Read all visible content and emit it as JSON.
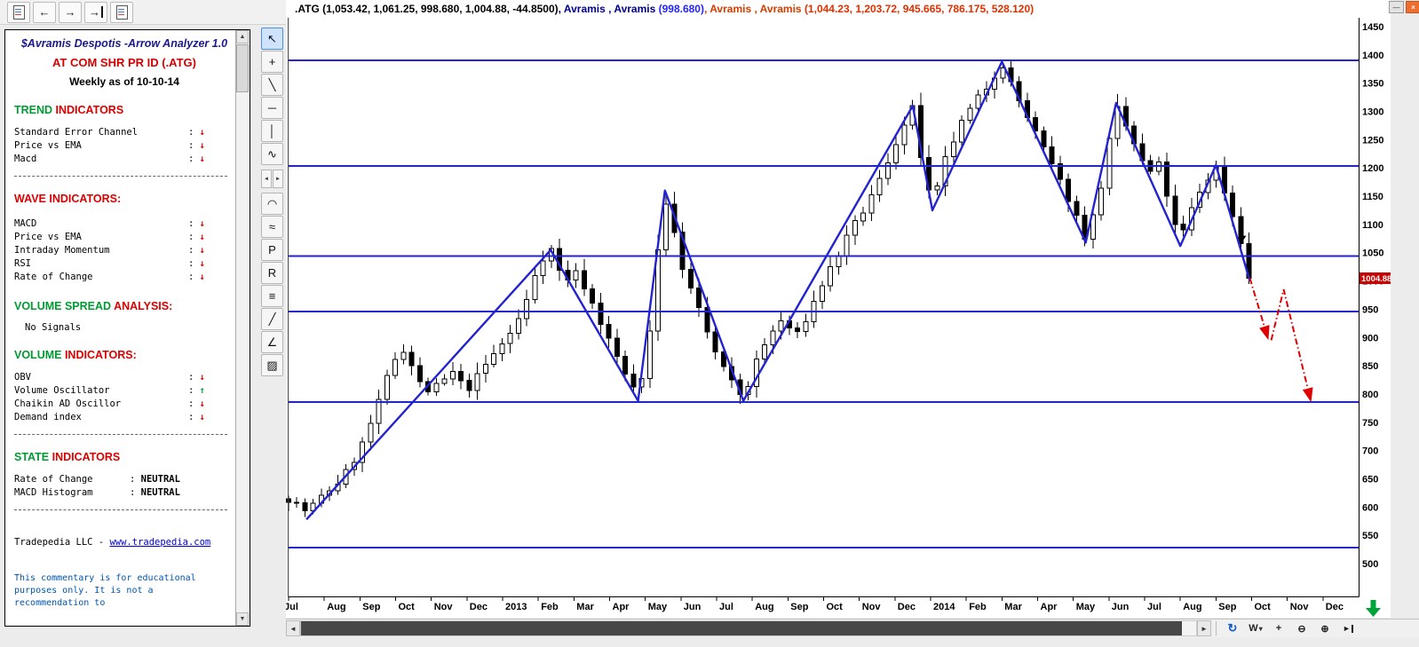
{
  "accent": {
    "chart_blue": "#2323cf",
    "signal_red": "#e00000",
    "signal_green": "#00a33a",
    "tag_red": "#c80000",
    "heading_green": "#009b33",
    "heading_red": "#dd0000"
  },
  "window": {
    "minimize_glyph": "—",
    "close_glyph": "×"
  },
  "top_toolbar": {
    "buttons": [
      {
        "name": "open-chart-icon",
        "kind": "doc"
      },
      {
        "name": "arrow-left-icon",
        "kind": "glyph",
        "glyph": "←"
      },
      {
        "name": "arrow-right-icon",
        "kind": "glyph",
        "glyph": "→"
      },
      {
        "name": "arrow-last-icon",
        "kind": "glyph-bar",
        "glyph": "→"
      },
      {
        "name": "layout-icon",
        "kind": "doc"
      }
    ]
  },
  "tool_palette": {
    "tools": [
      {
        "name": "pointer-tool-icon",
        "glyph": "↖",
        "selected": true
      },
      {
        "name": "crosshair-tool-icon",
        "glyph": "+"
      },
      {
        "name": "trendline-tool-icon",
        "glyph": "╲"
      },
      {
        "name": "horizontal-line-tool-icon",
        "glyph": "─"
      },
      {
        "name": "vertical-line-tool-icon",
        "glyph": "│"
      },
      {
        "name": "zigzag-tool-icon",
        "glyph": "∿"
      },
      {
        "kind": "split",
        "halves": [
          {
            "name": "palette-scroll-left-icon",
            "glyph": "◄"
          },
          {
            "name": "palette-scroll-right-icon",
            "glyph": "►"
          }
        ]
      },
      {
        "name": "arc-tool-icon",
        "glyph": "◠"
      },
      {
        "name": "channel-tool-icon",
        "glyph": "≈"
      },
      {
        "name": "pitchfork-tool-icon",
        "glyph": "P"
      },
      {
        "name": "regression-tool-icon",
        "glyph": "R"
      },
      {
        "name": "cycle-lines-tool-icon",
        "glyph": "≡"
      },
      {
        "name": "angle-line-tool-icon",
        "glyph": "╱"
      },
      {
        "name": "measure-tool-icon",
        "glyph": "∠"
      },
      {
        "name": "pattern-fill-tool-icon",
        "glyph": "▨"
      }
    ]
  },
  "commentary": {
    "header_title": "$Avramis Despotis -Arrow Analyzer 1.0",
    "header_symbol": "AT COM SHR PR ID (.ATG)",
    "header_period": "Weekly as of 10-10-14",
    "sections": [
      {
        "heading": [
          {
            "t": "TREND ",
            "color": "#009b33"
          },
          {
            "t": "INDICATORS",
            "color": "#dd0000"
          }
        ],
        "rows": [
          {
            "label": "Standard Error Channel",
            "arrow": "down"
          },
          {
            "label": "Price vs EMA",
            "arrow": "down"
          },
          {
            "label": "Macd",
            "arrow": "down"
          }
        ],
        "divider_after": true
      },
      {
        "heading": [
          {
            "t": "WAVE INDICATORS:",
            "color": "#dd0000"
          }
        ],
        "rows_gap": 14,
        "rows": [
          {
            "label": "MACD",
            "arrow": "down"
          },
          {
            "label": "Price vs EMA",
            "arrow": "down"
          },
          {
            "label": "Intraday Momentum",
            "arrow": "down"
          },
          {
            "label": "RSI",
            "arrow": "down"
          },
          {
            "label": "Rate of Change",
            "arrow": "down"
          }
        ]
      },
      {
        "heading": [
          {
            "t": "VOLUME SPREAD ",
            "color": "#009b33"
          },
          {
            "t": "ANALYSIS:",
            "color": "#dd0000"
          }
        ],
        "text_rows": [
          "No Signals"
        ]
      },
      {
        "heading": [
          {
            "t": "VOLUME ",
            "color": "#009b33"
          },
          {
            "t": "INDICATORS:",
            "color": "#dd0000"
          }
        ],
        "rows": [
          {
            "label": "OBV",
            "arrow": "down"
          },
          {
            "label": "Volume Oscillator",
            "arrow": "up"
          },
          {
            "label": "Chaikin AD Oscillor",
            "arrow": "down"
          },
          {
            "label": "Demand index",
            "arrow": "down"
          }
        ],
        "divider_after": true
      },
      {
        "heading": [
          {
            "t": "STATE ",
            "color": "#009b33"
          },
          {
            "t": "INDICATORS",
            "color": "#dd0000"
          }
        ],
        "state_rows": [
          {
            "label": "Rate of Change",
            "value": "NEUTRAL"
          },
          {
            "label": "MACD Histogram",
            "value": "NEUTRAL"
          }
        ],
        "divider_after": true
      }
    ],
    "footer_company": "Tradepedia LLC - ",
    "footer_link": "www.tradepedia.com",
    "disclaimer": "This commentary is for educational purposes only. It is not a recommendation to"
  },
  "scrollbars": {
    "up": "▲",
    "down": "▼",
    "left": "◄",
    "right": "►"
  },
  "bottom_bar": {
    "controls": [
      {
        "name": "refresh-icon",
        "glyph": "↻",
        "color": "blue"
      },
      {
        "name": "periodicity-selector",
        "glyph": "W",
        "caret": "▾"
      },
      {
        "name": "pan-icon",
        "glyph": "+"
      },
      {
        "name": "zoom-out-icon",
        "glyph": "⊖"
      },
      {
        "name": "zoom-in-icon",
        "glyph": "⊕"
      },
      {
        "name": "go-to-end-icon",
        "glyph": "►",
        "bar": true
      }
    ]
  },
  "chart_data": {
    "type": "candlestick",
    "symbol": ".ATG",
    "title_segments": [
      {
        "text": ".ATG (1,053.42, 1,061.25, 998.680, 1,004.88, -44.8500)",
        "color": "#000000"
      },
      {
        "text": ", Avramis , Avramis ",
        "color": "#00008b"
      },
      {
        "text": " (998.680)",
        "color": "#2424ff"
      },
      {
        "text": ", Avramis , Avramis ",
        "color": "#d43c00"
      },
      {
        "text": " (1,044.23, 1,203.72, 945.665, 786.175, 528.120)",
        "color": "#e03000"
      }
    ],
    "ohlc_last": {
      "open": 1053.42,
      "high": 1061.25,
      "low": 998.68,
      "close": 1004.88,
      "change": -44.85
    },
    "y_axis": {
      "min": 500,
      "max": 1450,
      "tick_step": 50
    },
    "y_ticks": [
      1450,
      1400,
      1350,
      1300,
      1250,
      1200,
      1150,
      1100,
      1050,
      1000,
      950,
      900,
      850,
      800,
      750,
      700,
      650,
      600,
      550,
      500
    ],
    "x_axis_labels": [
      "Jul",
      "Aug",
      "Sep",
      "Oct",
      "Nov",
      "Dec",
      "2013",
      "Feb",
      "Mar",
      "Apr",
      "May",
      "Jun",
      "Jul",
      "Aug",
      "Sep",
      "Oct",
      "Nov",
      "Dec",
      "2014",
      "Feb",
      "Mar",
      "Apr",
      "May",
      "Jun",
      "Jul",
      "Aug",
      "Sep",
      "Oct",
      "Nov",
      "Dec"
    ],
    "months_visible": 30,
    "weeks_per_month": 4.345,
    "data_end_month": 27.0,
    "last_close": 1004.88,
    "last_price_tag": "1004.88",
    "horizontal_levels": [
      1390,
      1203.72,
      1044.23,
      945.665,
      786.175,
      528.12
    ],
    "zigzag_points": [
      [
        0.5,
        578
      ],
      [
        7.35,
        1055
      ],
      [
        9.8,
        788
      ],
      [
        10.55,
        1160
      ],
      [
        12.75,
        788
      ],
      [
        17.5,
        1310
      ],
      [
        18.05,
        1125
      ],
      [
        20.0,
        1388
      ],
      [
        22.35,
        1068
      ],
      [
        23.2,
        1315
      ],
      [
        25.0,
        1062
      ],
      [
        26.0,
        1205
      ],
      [
        26.95,
        1000
      ]
    ],
    "projection_arrows": [
      [
        [
          26.95,
          1005
        ],
        [
          27.45,
          900
        ]
      ],
      [
        [
          27.55,
          895
        ],
        [
          27.9,
          985
        ],
        [
          28.65,
          790
        ]
      ]
    ],
    "down_marker": [
      26.75,
      1080
    ],
    "close_path": [
      [
        0,
        615
      ],
      [
        0.5,
        592
      ],
      [
        1,
        622
      ],
      [
        1.5,
        650
      ],
      [
        2,
        700
      ],
      [
        2.5,
        778
      ],
      [
        2.9,
        855
      ],
      [
        3.2,
        882
      ],
      [
        3.5,
        845
      ],
      [
        3.8,
        802
      ],
      [
        4.2,
        815
      ],
      [
        4.6,
        838
      ],
      [
        5,
        806
      ],
      [
        5.4,
        840
      ],
      [
        5.8,
        875
      ],
      [
        6.2,
        905
      ],
      [
        6.6,
        950
      ],
      [
        7,
        1032
      ],
      [
        7.35,
        1058
      ],
      [
        7.7,
        1000
      ],
      [
        8.1,
        1016
      ],
      [
        8.5,
        962
      ],
      [
        9,
        892
      ],
      [
        9.4,
        840
      ],
      [
        9.8,
        792
      ],
      [
        10.1,
        900
      ],
      [
        10.4,
        1082
      ],
      [
        10.55,
        1150
      ],
      [
        10.8,
        1085
      ],
      [
        11.1,
        1012
      ],
      [
        11.5,
        950
      ],
      [
        11.9,
        882
      ],
      [
        12.3,
        832
      ],
      [
        12.75,
        792
      ],
      [
        13.1,
        855
      ],
      [
        13.5,
        905
      ],
      [
        13.9,
        935
      ],
      [
        14.2,
        896
      ],
      [
        14.6,
        945
      ],
      [
        15,
        1000
      ],
      [
        15.4,
        1046
      ],
      [
        15.8,
        1092
      ],
      [
        16.2,
        1132
      ],
      [
        16.6,
        1182
      ],
      [
        17,
        1242
      ],
      [
        17.5,
        1305
      ],
      [
        17.8,
        1192
      ],
      [
        18.05,
        1132
      ],
      [
        18.4,
        1212
      ],
      [
        18.8,
        1272
      ],
      [
        19.2,
        1312
      ],
      [
        19.6,
        1346
      ],
      [
        20,
        1386
      ],
      [
        20.3,
        1342
      ],
      [
        20.7,
        1292
      ],
      [
        21.1,
        1242
      ],
      [
        21.5,
        1192
      ],
      [
        21.9,
        1142
      ],
      [
        22.35,
        1076
      ],
      [
        22.7,
        1140
      ],
      [
        23,
        1242
      ],
      [
        23.2,
        1308
      ],
      [
        23.5,
        1270
      ],
      [
        23.8,
        1230
      ],
      [
        24.1,
        1185
      ],
      [
        24.35,
        1215
      ],
      [
        24.6,
        1160
      ],
      [
        24.8,
        1105
      ],
      [
        25,
        1072
      ],
      [
        25.3,
        1125
      ],
      [
        25.65,
        1172
      ],
      [
        26,
        1200
      ],
      [
        26.3,
        1148
      ],
      [
        26.6,
        1088
      ],
      [
        26.85,
        1045
      ],
      [
        27,
        1004.88
      ]
    ]
  }
}
